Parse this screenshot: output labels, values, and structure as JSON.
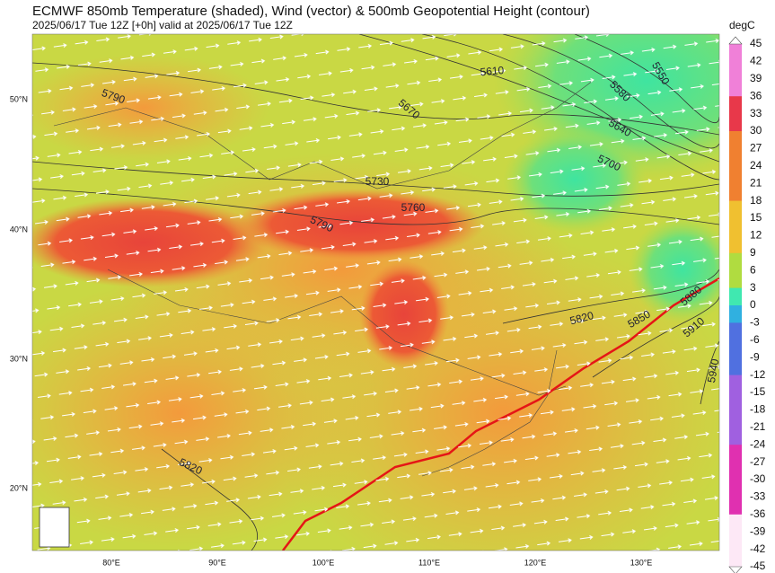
{
  "header": {
    "title": "ECMWF 850mb Temperature (shaded), Wind (vector) & 500mb Geopotential Height (contour)",
    "subtitle": "2025/06/17 Tue 12Z [+0h] valid at 2025/06/17 Tue 12Z"
  },
  "colorbar": {
    "unit": "degC",
    "ticks": [
      45,
      42,
      39,
      36,
      33,
      30,
      27,
      24,
      21,
      18,
      15,
      12,
      9,
      6,
      3,
      0,
      -3,
      -6,
      -9,
      -12,
      -15,
      -18,
      -21,
      -24,
      -27,
      -30,
      -33,
      -36,
      -39,
      -42,
      -45
    ]
  },
  "axes": {
    "latitudes": [
      "50°N",
      "40°N",
      "30°N",
      "20°N"
    ],
    "longitudes": [
      "80°E",
      "90°E",
      "100°E",
      "110°E",
      "120°E",
      "130°E"
    ]
  },
  "contour_labels": [
    "5790",
    "5610",
    "5550",
    "5580",
    "5670",
    "5640",
    "5700",
    "5730",
    "5760",
    "5790",
    "5820",
    "5850",
    "5880",
    "5910",
    "5940",
    "5820"
  ]
}
